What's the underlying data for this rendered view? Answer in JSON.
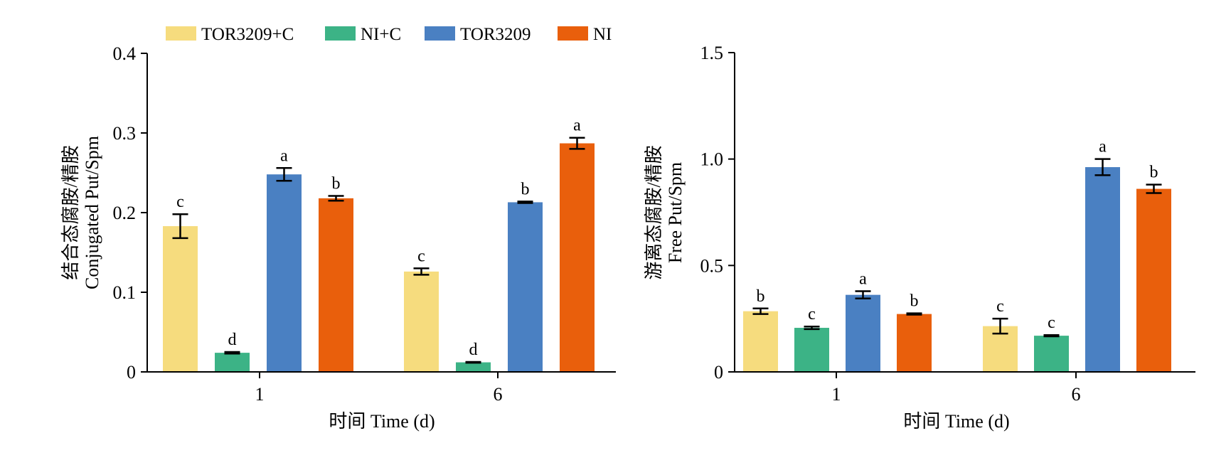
{
  "colors": {
    "TOR3209+C": "#f6dc7e",
    "NI+C": "#3cb386",
    "TOR3209": "#4a80c2",
    "NI": "#e95f0c"
  },
  "legend": [
    "TOR3209+C",
    "NI+C",
    "TOR3209",
    "NI"
  ],
  "chart_data": [
    {
      "type": "bar",
      "ylabel_cn": "结合态腐胺/精胺",
      "ylabel_en": "Conjugated Put/Spm",
      "xlabel": "时间 Time (d)",
      "categories": [
        "1",
        "6"
      ],
      "ylim": [
        0,
        0.4
      ],
      "yticks": [
        "0",
        "0.1",
        "0.2",
        "0.3",
        "0.4"
      ],
      "ytick_values": [
        0,
        0.1,
        0.2,
        0.3,
        0.4
      ],
      "legend_position": "top",
      "series": [
        {
          "name": "TOR3209+C",
          "values": [
            0.183,
            0.126
          ],
          "errors": [
            0.015,
            0.004
          ],
          "letters": [
            "c",
            "c"
          ]
        },
        {
          "name": "NI+C",
          "values": [
            0.024,
            0.012
          ],
          "errors": [
            0.001,
            0.0005
          ],
          "letters": [
            "d",
            "d"
          ]
        },
        {
          "name": "TOR3209",
          "values": [
            0.248,
            0.213
          ],
          "errors": [
            0.008,
            0.001
          ],
          "letters": [
            "a",
            "b"
          ]
        },
        {
          "name": "NI",
          "values": [
            0.218,
            0.287
          ],
          "errors": [
            0.003,
            0.007
          ],
          "letters": [
            "b",
            "a"
          ]
        }
      ]
    },
    {
      "type": "bar",
      "ylabel_cn": "游离态腐胺/精胺",
      "ylabel_en": "Free Put/Spm",
      "xlabel": "时间 Time (d)",
      "categories": [
        "1",
        "6"
      ],
      "ylim": [
        0,
        1.5
      ],
      "yticks": [
        "0",
        "0.5",
        "1.0",
        "1.5"
      ],
      "ytick_values": [
        0,
        0.5,
        1.0,
        1.5
      ],
      "series": [
        {
          "name": "TOR3209+C",
          "values": [
            0.285,
            0.215
          ],
          "errors": [
            0.013,
            0.035
          ],
          "letters": [
            "b",
            "c"
          ]
        },
        {
          "name": "NI+C",
          "values": [
            0.207,
            0.17
          ],
          "errors": [
            0.006,
            0.003
          ],
          "letters": [
            "c",
            "c"
          ]
        },
        {
          "name": "TOR3209",
          "values": [
            0.362,
            0.962
          ],
          "errors": [
            0.017,
            0.038
          ],
          "letters": [
            "a",
            "a"
          ]
        },
        {
          "name": "NI",
          "values": [
            0.272,
            0.86
          ],
          "errors": [
            0.003,
            0.02
          ],
          "letters": [
            "b",
            "b"
          ]
        }
      ]
    }
  ]
}
